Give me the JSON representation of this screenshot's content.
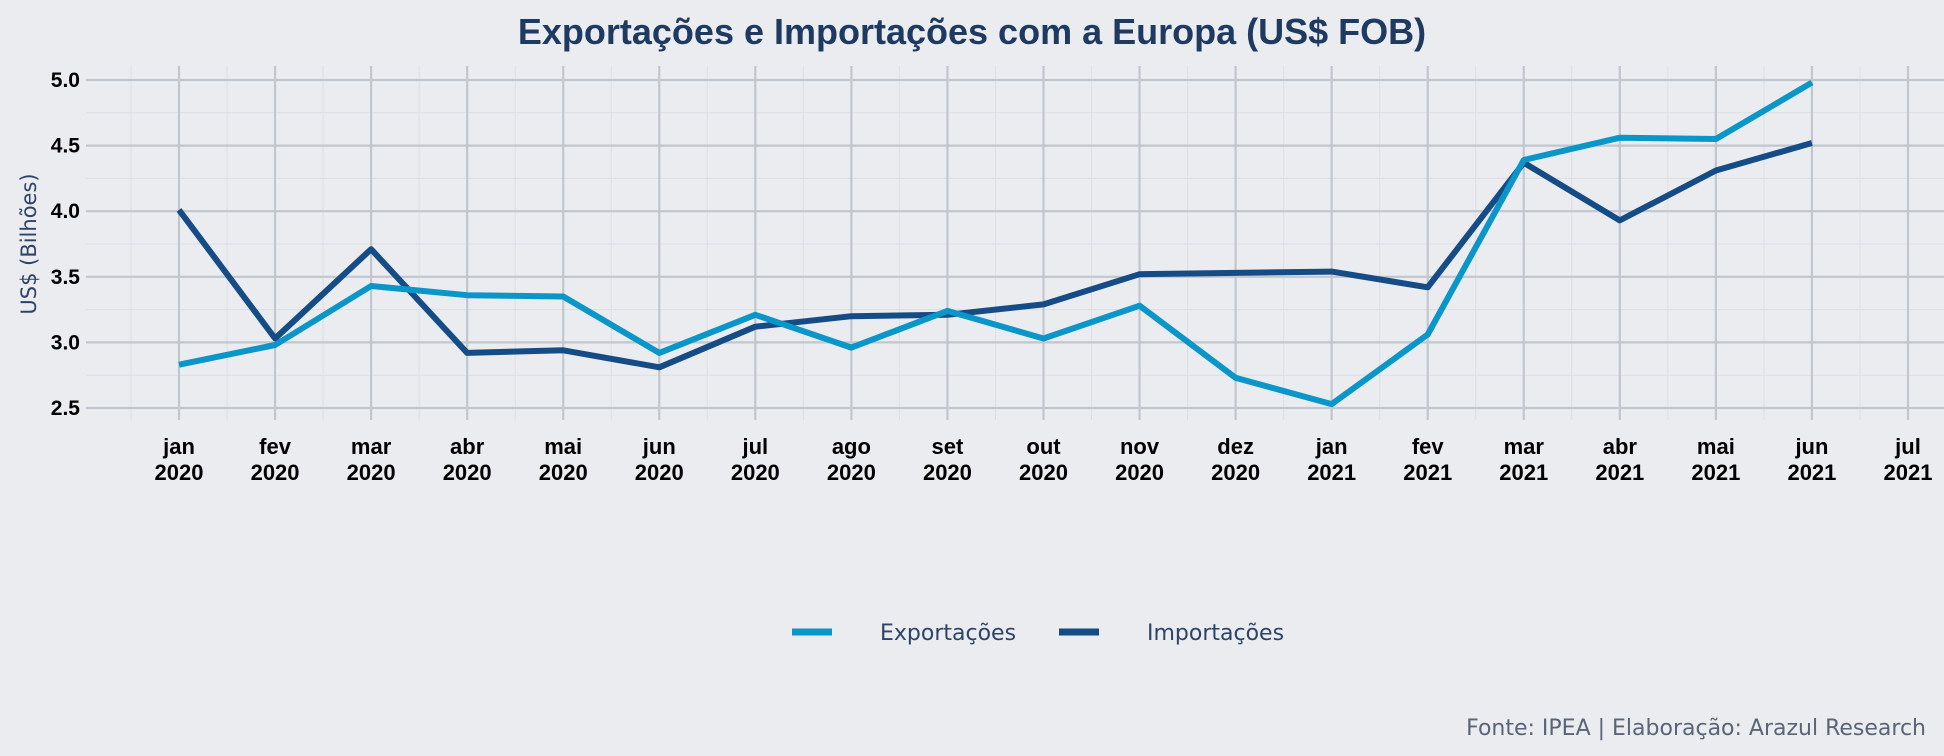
{
  "chart_data": {
    "type": "line",
    "title": "Exportações e Importações com a Europa (US$ FOB)",
    "xlabel": "",
    "ylabel": "US$ (Bilhões)",
    "caption": "Fonte: IPEA | Elaboração: Arazul Research",
    "ylim": [
      2.45,
      5.12
    ],
    "yticks": [
      "2.5",
      "3.0",
      "3.5",
      "4.0",
      "4.5",
      "5.0"
    ],
    "x_ticks": [
      {
        "month": "jan",
        "year": "2020"
      },
      {
        "month": "fev",
        "year": "2020"
      },
      {
        "month": "mar",
        "year": "2020"
      },
      {
        "month": "abr",
        "year": "2020"
      },
      {
        "month": "mai",
        "year": "2020"
      },
      {
        "month": "jun",
        "year": "2020"
      },
      {
        "month": "jul",
        "year": "2020"
      },
      {
        "month": "ago",
        "year": "2020"
      },
      {
        "month": "set",
        "year": "2020"
      },
      {
        "month": "out",
        "year": "2020"
      },
      {
        "month": "nov",
        "year": "2020"
      },
      {
        "month": "dez",
        "year": "2020"
      },
      {
        "month": "jan",
        "year": "2021"
      },
      {
        "month": "fev",
        "year": "2021"
      },
      {
        "month": "mar",
        "year": "2021"
      },
      {
        "month": "abr",
        "year": "2021"
      },
      {
        "month": "mai",
        "year": "2021"
      },
      {
        "month": "jun",
        "year": "2021"
      },
      {
        "month": "jul",
        "year": "2021"
      }
    ],
    "x": [
      "2020-01",
      "2020-02",
      "2020-03",
      "2020-04",
      "2020-05",
      "2020-06",
      "2020-07",
      "2020-08",
      "2020-09",
      "2020-10",
      "2020-11",
      "2020-12",
      "2021-01",
      "2021-02",
      "2021-03",
      "2021-04",
      "2021-05",
      "2021-06"
    ],
    "series": [
      {
        "name": "Exportações",
        "color": "#0A96C8",
        "values": [
          2.83,
          2.98,
          3.43,
          3.36,
          3.35,
          2.92,
          3.21,
          2.96,
          3.24,
          3.03,
          3.28,
          2.73,
          2.53,
          3.06,
          4.39,
          4.56,
          4.55,
          4.98
        ]
      },
      {
        "name": "Importações",
        "color": "#154C86",
        "values": [
          4.01,
          3.03,
          3.71,
          2.92,
          2.94,
          2.81,
          3.12,
          3.2,
          3.21,
          3.29,
          3.52,
          3.53,
          3.54,
          3.42,
          4.37,
          3.93,
          4.31,
          4.52
        ]
      }
    ],
    "grid": true,
    "legend_position": "bottom"
  }
}
